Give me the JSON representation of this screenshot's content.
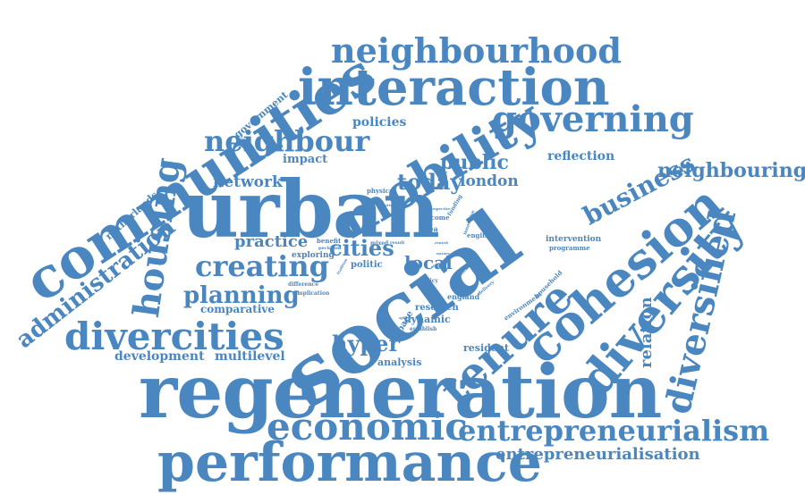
{
  "accent_color": "#4a86c0",
  "words": [
    {
      "text": "social",
      "weight": 100
    },
    {
      "text": "urban",
      "weight": 95
    },
    {
      "text": "regeneration",
      "weight": 92
    },
    {
      "text": "communities",
      "weight": 80
    },
    {
      "text": "interaction",
      "weight": 72
    },
    {
      "text": "performance",
      "weight": 70
    },
    {
      "text": "cohesion",
      "weight": 66
    },
    {
      "text": "mobility",
      "weight": 64
    },
    {
      "text": "diversity",
      "weight": 64
    },
    {
      "text": "tenure",
      "weight": 60
    },
    {
      "text": "economic",
      "weight": 58
    },
    {
      "text": "divercities",
      "weight": 52
    },
    {
      "text": "diversified",
      "weight": 52
    },
    {
      "text": "housing",
      "weight": 48
    },
    {
      "text": "neighbourhood",
      "weight": 46
    },
    {
      "text": "governing",
      "weight": 46
    },
    {
      "text": "entrepreneurialism",
      "weight": 44
    },
    {
      "text": "neighbour",
      "weight": 38
    },
    {
      "text": "creating",
      "weight": 36
    },
    {
      "text": "administration",
      "weight": 34
    },
    {
      "text": "business",
      "weight": 32
    },
    {
      "text": "planning",
      "weight": 28
    },
    {
      "text": "hyper",
      "weight": 28
    },
    {
      "text": "neighbouring",
      "weight": 26
    },
    {
      "text": "today",
      "weight": 26
    },
    {
      "text": "public",
      "weight": 24
    },
    {
      "text": "cities",
      "weight": 24
    },
    {
      "text": "local",
      "weight": 22
    },
    {
      "text": "relation",
      "weight": 20
    },
    {
      "text": "practice",
      "weight": 20
    },
    {
      "text": "entrepreneurialisation",
      "weight": 20
    },
    {
      "text": "network",
      "weight": 18
    },
    {
      "text": "london",
      "weight": 18
    },
    {
      "text": "development",
      "weight": 16
    },
    {
      "text": "multilevel",
      "weight": 16
    },
    {
      "text": "reflection",
      "weight": 16
    },
    {
      "text": "policies",
      "weight": 16
    },
    {
      "text": "impact",
      "weight": 14
    },
    {
      "text": "comparative",
      "weight": 14
    },
    {
      "text": "government",
      "weight": 12
    },
    {
      "text": "netherlands",
      "weight": 12
    },
    {
      "text": "resident",
      "weight": 12
    },
    {
      "text": "analysis",
      "weight": 12
    },
    {
      "text": "dynamic",
      "weight": 12
    },
    {
      "text": "research",
      "weight": 12
    },
    {
      "text": "space",
      "weight": 12
    },
    {
      "text": "politic",
      "weight": 12
    },
    {
      "text": "exploring",
      "weight": 10
    },
    {
      "text": "intervention",
      "weight": 10
    },
    {
      "text": "programme",
      "weight": 8
    },
    {
      "text": "environment",
      "weight": 8
    },
    {
      "text": "household",
      "weight": 8
    },
    {
      "text": "england",
      "weight": 8
    },
    {
      "text": "area",
      "weight": 8
    },
    {
      "text": "income",
      "weight": 8
    },
    {
      "text": "english",
      "weight": 8
    },
    {
      "text": "benefit",
      "weight": 8
    },
    {
      "text": "mixed",
      "weight": 7
    },
    {
      "text": "physical",
      "weight": 7
    },
    {
      "text": "difference",
      "weight": 7
    },
    {
      "text": "implication",
      "weight": 7
    },
    {
      "text": "establish",
      "weight": 7
    },
    {
      "text": "policy",
      "weight": 7
    },
    {
      "text": "peckham",
      "weight": 6
    },
    {
      "text": "result",
      "weight": 6
    },
    {
      "text": "funding",
      "weight": 6
    },
    {
      "text": "innovative",
      "weight": 5
    },
    {
      "text": "delivery",
      "weight": 5
    },
    {
      "text": "article",
      "weight": 5
    },
    {
      "text": "rented",
      "weight": 4
    },
    {
      "text": "nature",
      "weight": 4
    },
    {
      "text": "perspective",
      "weight": 4
    },
    {
      "text": "tradition",
      "weight": 4
    },
    {
      "text": "focus",
      "weight": 4
    },
    {
      "text": "sphere",
      "weight": 4
    },
    {
      "text": "rotterdam",
      "weight": 4
    }
  ]
}
